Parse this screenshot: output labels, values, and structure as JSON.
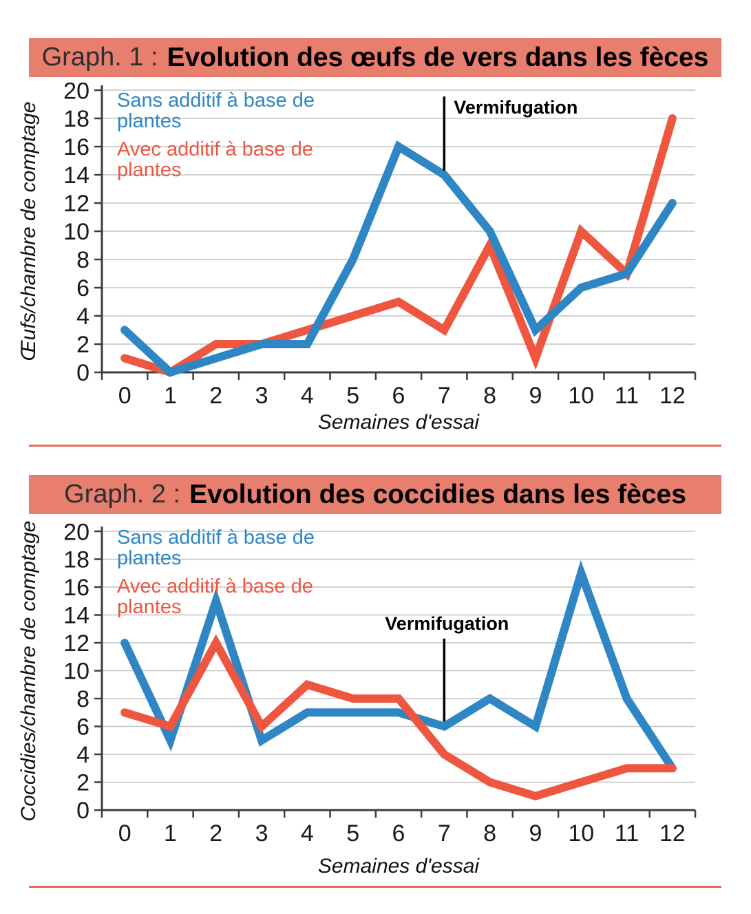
{
  "theme": {
    "background": "#ffffff",
    "banner_bg": "#e77e6e",
    "separator_color": "#e96a55",
    "grid_color": "#c3c3c3",
    "axis_color": "#3d3d3d",
    "tick_label_color": "#1a1a1a",
    "annotation_color": "#000000"
  },
  "chart_data": [
    {
      "type": "line",
      "title_prefix": "Graph. 1 :",
      "title": "Evolution des œufs de vers dans les fèces",
      "xlabel": "Semaines d'essai",
      "ylabel": "Œufs/chambre de comptage",
      "x": [
        0,
        1,
        2,
        3,
        4,
        5,
        6,
        7,
        8,
        9,
        10,
        11,
        12
      ],
      "ylim": [
        0,
        20
      ],
      "ytick_step": 2,
      "grid": true,
      "legend_position": "top-left-inside",
      "top_series_index": 0,
      "annotation": {
        "label": "Vermifugation",
        "x": 7,
        "line_top": 19.55,
        "line_bottom": 14.3,
        "label_side": "right"
      },
      "series": [
        {
          "name": "Sans additif à base de plantes",
          "color": "#2e86c5",
          "values": [
            3,
            0,
            1,
            2,
            2,
            8,
            16,
            14,
            10,
            3,
            6,
            7,
            12
          ]
        },
        {
          "name": "Avec additif à base de plantes",
          "color": "#ee5640",
          "values": [
            1,
            0,
            2,
            2,
            3,
            4,
            5,
            3,
            9,
            1,
            10,
            7,
            18
          ]
        }
      ]
    },
    {
      "type": "line",
      "title_prefix": "Graph. 2 :",
      "title": "Evolution des coccidies dans les fèces",
      "xlabel": "Semaines d'essai",
      "ylabel": "Coccidies/chambre de comptage",
      "x": [
        0,
        1,
        2,
        3,
        4,
        5,
        6,
        7,
        8,
        9,
        10,
        11,
        12
      ],
      "ylim": [
        0,
        20
      ],
      "ytick_step": 2,
      "grid": true,
      "legend_position": "top-left-inside",
      "top_series_index": 1,
      "annotation": {
        "label": "Vermifugation",
        "x": 7,
        "line_top": 12.3,
        "line_bottom": 6.35,
        "label_side": "above"
      },
      "series": [
        {
          "name": "Sans additif à base de plantes",
          "color": "#2e86c5",
          "values": [
            12,
            5,
            15,
            5,
            7,
            7,
            7,
            6,
            8,
            6,
            17,
            8,
            3
          ]
        },
        {
          "name": "Avec additif à base de plantes",
          "color": "#ee5640",
          "values": [
            7,
            6,
            12,
            6,
            9,
            8,
            8,
            4,
            2,
            1,
            2,
            3,
            3
          ]
        }
      ]
    }
  ]
}
